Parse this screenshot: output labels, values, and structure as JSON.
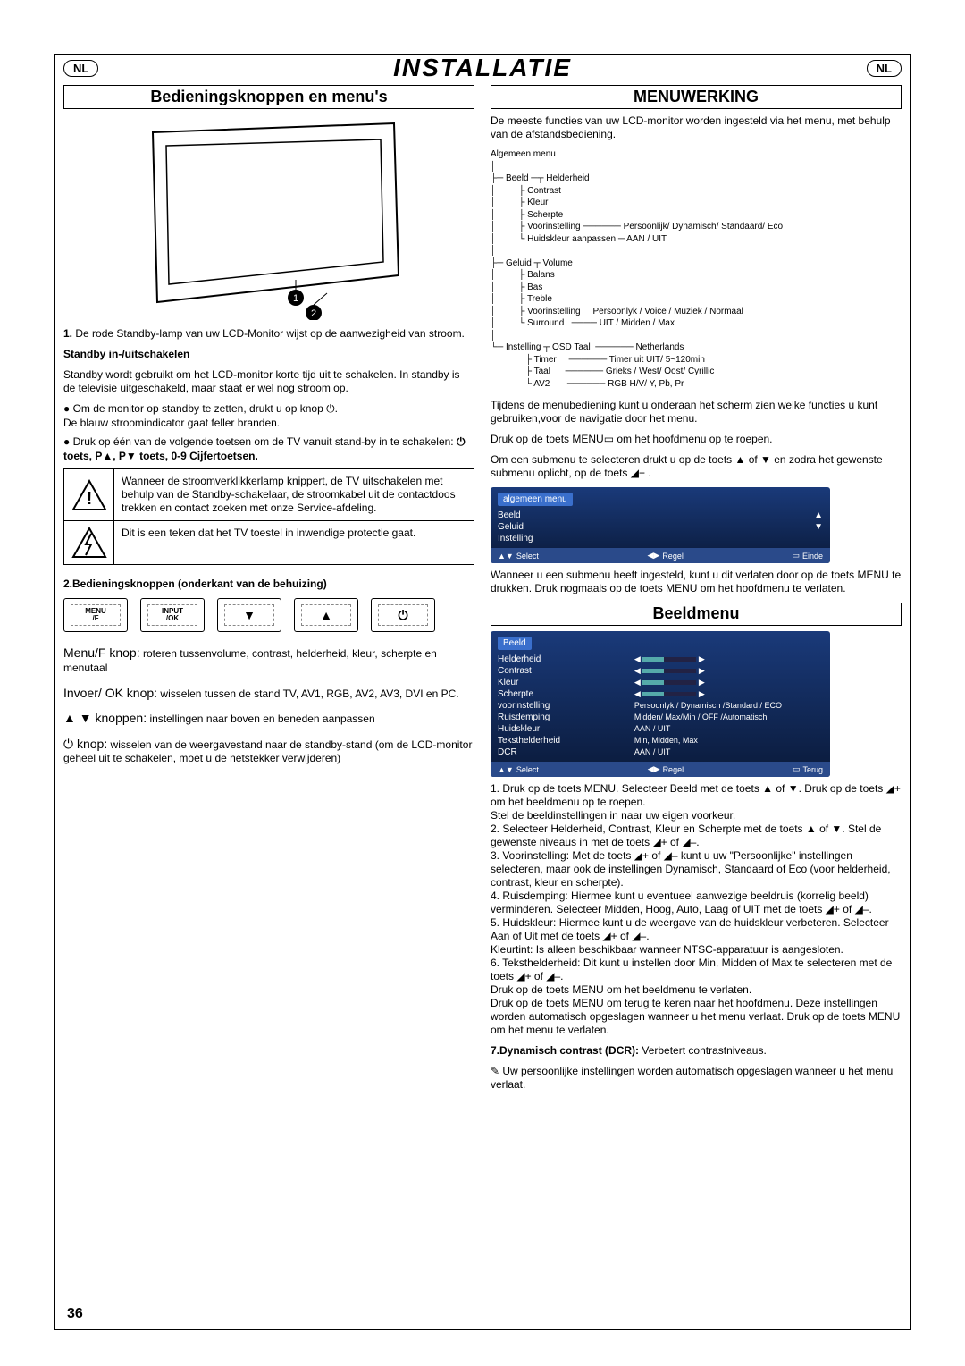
{
  "header": {
    "badge": "NL",
    "title": "INSTALLATIE"
  },
  "left": {
    "section_title": "Bedieningsknoppen en menu's",
    "para1_label": "1.",
    "para1": " De rode Standby-lamp van uw LCD-Monitor wijst op de aanwezigheid van stroom.",
    "standby_h": "Standby in-/uitschakelen",
    "standby_p": "Standby wordt gebruikt om het LCD-monitor korte tijd uit te   schakelen. In standby is de televisie uitgeschakeld, maar staat er wel nog stroom op.",
    "bul1": "● Om de monitor op standby te zetten, drukt u op knop ⏻.\nDe blauw stroomindicator gaat feller branden.",
    "bul2_a": "● Druk op één van de volgende toetsen om de TV vanuit stand-by in te schakelen: ",
    "bul2_b": "⏻ toets, P▲, P▼ toets, 0-9 Cijfertoetsen.",
    "warn1": "Wanneer de stroomverklikkerlamp knippert, de TV uitschakelen met behulp van de Standby-schakelaar, de stroomkabel uit de contactdoos trekken en contact zoeken met onze Service-afdeling.",
    "warn2": "Dit is een teken dat het TV toestel in inwendige protectie gaat.",
    "section2_h": "2.Bedieningsknoppen (onderkant van de behuizing)",
    "btns": {
      "menu": "MENU\n/F",
      "input": "INPUT\n/OK",
      "down": "▼",
      "up": "▲",
      "power": "⏻"
    },
    "k1_a": "Menu/F knop:",
    "k1_b": " roteren tussenvolume, contrast, helderheid, kleur, scherpte en menutaal",
    "k2_a": "Invoer/ OK knop:",
    "k2_b": " wisselen tussen de stand TV, AV1, RGB, AV2, AV3, DVI en PC.",
    "k3_a": "▲ ▼ knoppen:",
    "k3_b": " instellingen naar boven en beneden aanpassen",
    "k4_a": "⏻ knop:",
    "k4_b": " wisselen van de weergavestand naar de standby-stand (om de LCD-monitor geheel uit te schakelen, moet u de netstekker verwijderen)"
  },
  "right": {
    "section_title": "MENUWERKING",
    "intro": "De meeste functies van uw LCD-monitor worden ingesteld via het menu, met behulp van de afstandsbediening.",
    "tree": "Algemeen menu\n│\n├─ Beeld ─┬ Helderheid\n│         ├ Contrast\n│         ├ Kleur\n│         ├ Scherpte\n│         ├ Voorinstelling ────── Persoonlijk/ Dynamisch/ Standaard/ Eco\n│         └ Huidskleur aanpassen ─ AAN / UIT\n│\n├─ Geluid ┬ Volume\n│         ├ Balans\n│         ├ Bas\n│         ├ Treble\n│         ├ Voorinstelling     Persoonlyk / Voice / Muziek / Normaal\n│         └ Surround   ──── UIT / Midden / Max\n│\n└─ Instelling ┬ OSD Taal  ────── Netherlands\n              ├ Timer     ────── Timer uit UIT/ 5~120min\n              ├ Taal      ────── Grieks / West/ Oost/ Cyrillic\n              └ AV2       ────── RGB H/V/ Y, Pb, Pr",
    "p_during": "Tijdens de menubediening kunt u onderaan het scherm zien welke functies u kunt gebruiken,voor de navigatie door het menu.",
    "p_press": "Druk op de toets MENU▭ om het hoofdmenu op te roepen.",
    "p_submenu": "Om een submenu te selecteren drukt u op de toets ▲ of ▼ en zodra het gewenste submenu oplicht, op de toets ◢+ .",
    "osd1": {
      "title": "algemeen menu",
      "r1": "Beeld",
      "r2": "Geluid",
      "r3": "Instelling",
      "f1": "Select",
      "f2": "Regel",
      "f3": "Einde"
    },
    "p_after_osd1": "Wanneer u een submenu heeft ingesteld, kunt u dit verlaten door op de toets MENU te drukken. Druk nogmaals op de toets MENU om het hoofdmenu te verlaten.",
    "beeld_title": "Beeldmenu",
    "osd2": {
      "title": "Beeld",
      "rows": [
        [
          "Helderheid",
          "slider"
        ],
        [
          "Contrast",
          "slider"
        ],
        [
          "Kleur",
          "slider"
        ],
        [
          "Scherpte",
          "slider"
        ],
        [
          "voorinstelling",
          "Persoonlyk / Dynamisch /Standard / ECO"
        ],
        [
          "Ruisdemping",
          "Midden/ Max/Min / OFF  /Automatisch"
        ],
        [
          "Huidskleur",
          "AAN / UIT"
        ],
        [
          "Teksthelderheid",
          "Min, Midden, Max"
        ],
        [
          "DCR",
          "AAN / UIT"
        ]
      ],
      "f1": "Select",
      "f2": "Regel",
      "f3": "Terug"
    },
    "beeld_text": "1. Druk op de toets MENU. Selecteer Beeld met de toets ▲ of ▼. Druk op de toets ◢+ om het beeldmenu op te roepen.\nStel de beeldinstellingen in naar uw eigen voorkeur.\n2. Selecteer Helderheid, Contrast, Kleur en Scherpte met de toets ▲ of ▼. Stel de gewenste niveaus in met de toets ◢+ of ◢–.\n3. Voorinstelling: Met de toets ◢+ of ◢– kunt u uw \"Persoonlijke\" instellingen selecteren, maar ook de instellingen Dynamisch, Standaard of Eco (voor helderheid, contrast, kleur en scherpte).\n4. Ruisdemping: Hiermee kunt u eventueel aanwezige beeldruis (korrelig beeld) verminderen. Selecteer Midden, Hoog, Auto, Laag of UIT met de toets ◢+ of ◢–.\n5. Huidskleur: Hiermee kunt u de weergave van de huidskleur verbeteren. Selecteer Aan of Uit met de toets ◢+ of ◢–.\nKleurtint: Is alleen beschikbaar wanneer NTSC-apparatuur is aangesloten.\n6. Teksthelderheid: Dit kunt u instellen door Min, Midden of Max te selecteren met de toets ◢+ of ◢–.\nDruk op de toets MENU om het beeldmenu te verlaten.\nDruk op de toets MENU om terug te keren naar het hoofdmenu. Deze instellingen worden automatisch opgeslagen wanneer u het menu verlaat. Druk op de toets MENU om het menu te verlaten.",
    "p7_a": "7.Dynamisch contrast (DCR):",
    "p7_b": " Verbetert contrastniveaus.",
    "note": "✎ Uw persoonlijke instellingen worden automatisch opgeslagen wanneer u het menu verlaat."
  },
  "page": "36"
}
